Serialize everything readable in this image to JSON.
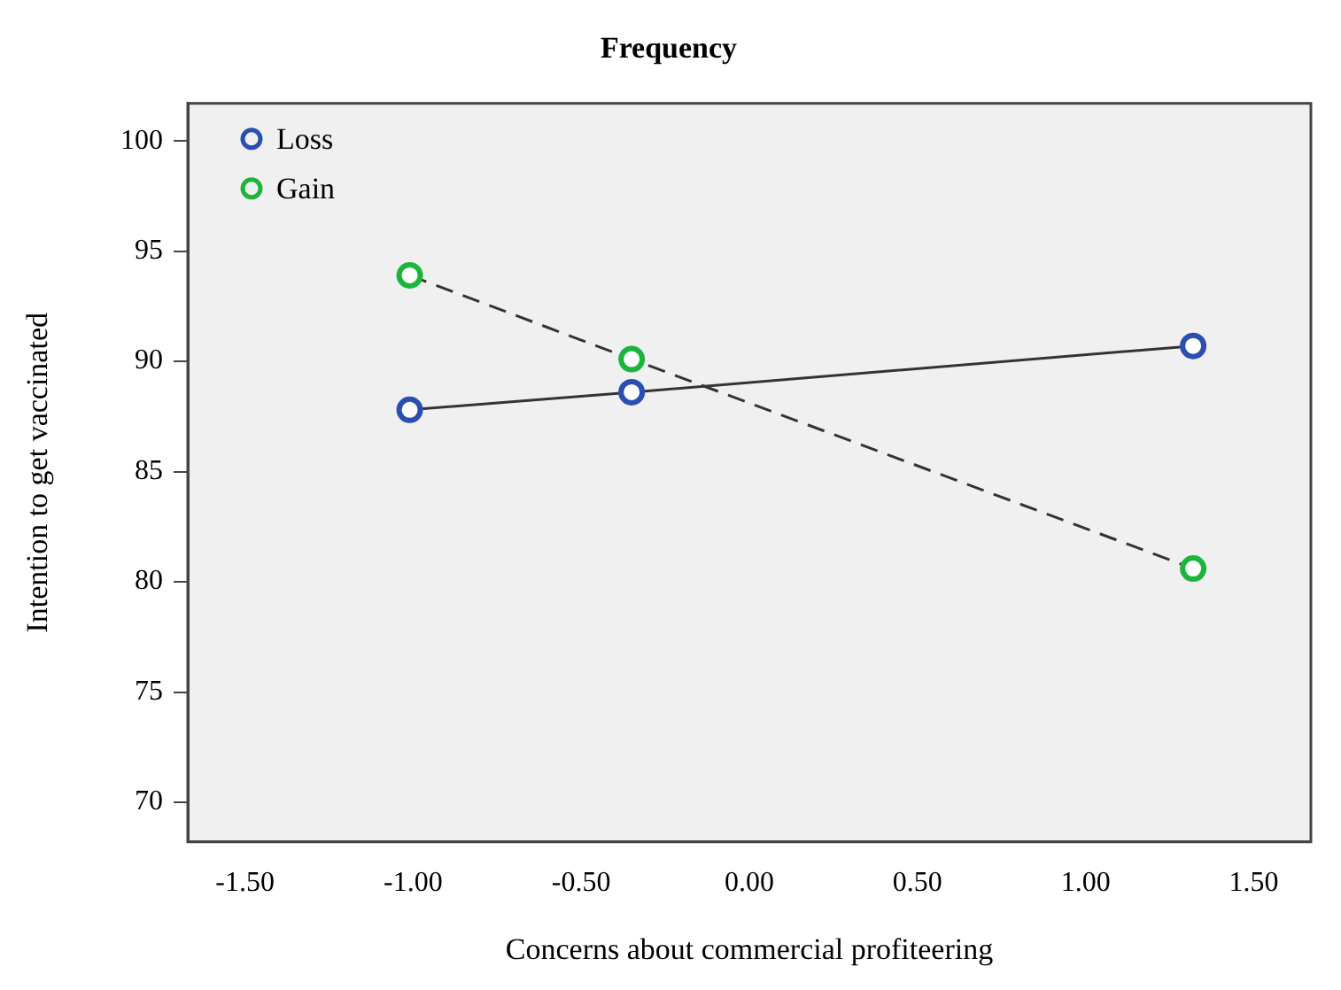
{
  "chart_data": {
    "type": "line",
    "title": "Frequency",
    "xlabel": "Concerns about commercial profiteering",
    "ylabel": "Intention to get vaccinated",
    "xlim": [
      -1.67,
      1.67
    ],
    "ylim": [
      68.2,
      101.7
    ],
    "xticks": [
      {
        "value": -1.5,
        "label": "-1.50"
      },
      {
        "value": -1,
        "label": "-1.00"
      },
      {
        "value": -0.5,
        "label": "-0.50"
      },
      {
        "value": 0,
        "label": "0.00"
      },
      {
        "value": 0.5,
        "label": "0.50"
      },
      {
        "value": 1,
        "label": "1.00"
      },
      {
        "value": 1.5,
        "label": "1.50"
      }
    ],
    "yticks": [
      70,
      75,
      80,
      85,
      90,
      95,
      100
    ],
    "series": [
      {
        "name": "Loss",
        "color": "#2a4fb0",
        "x": [
          -1.01,
          -0.35,
          1.32
        ],
        "values": [
          87.8,
          88.6,
          90.7
        ],
        "line_style": "solid"
      },
      {
        "name": "Gain",
        "color": "#1bb53c",
        "x": [
          -1.01,
          -0.35,
          1.32
        ],
        "values": [
          93.9,
          90.1,
          80.6
        ],
        "line_style": "dashed"
      }
    ],
    "marker": "circle",
    "grid": false,
    "legend": "top left"
  }
}
